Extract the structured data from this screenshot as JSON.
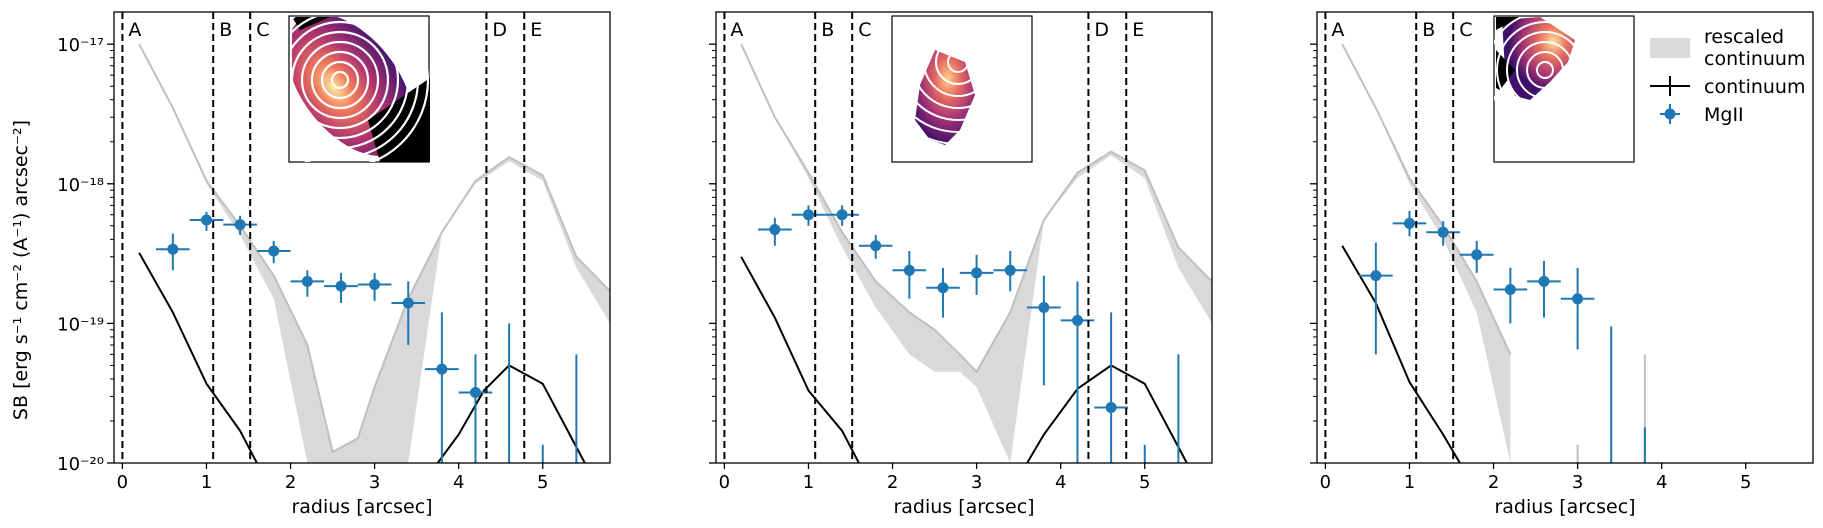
{
  "figure": {
    "ylabel": "SB [erg s⁻¹ cm⁻² (A⁻¹) arcsec⁻²]",
    "colors": {
      "mgii": "#1f77b4",
      "continuum": "#000000",
      "rescaled_fill": "#d9d9d9",
      "rescaled_line": "#bfbfbf"
    }
  },
  "chart_data": [
    {
      "type": "line",
      "panel": "left",
      "xlabel": "radius [arcsec]",
      "ylabel": "SB [erg s⁻¹ cm⁻² (A⁻¹) arcsec⁻²]",
      "xlim": [
        -0.1,
        5.8
      ],
      "ylim": [
        1e-20,
        1.7e-17
      ],
      "yscale": "log",
      "xticks": [
        0,
        1,
        2,
        3,
        4,
        5
      ],
      "xtick_labels": [
        "0",
        "1",
        "2",
        "3",
        "4",
        "5"
      ],
      "yticks": [
        1e-20,
        1e-19,
        1e-18,
        1e-17
      ],
      "ytick_labels": [
        "10⁻²⁰",
        "10⁻¹⁹",
        "10⁻¹⁸",
        "10⁻¹⁷"
      ],
      "show_ytick_labels": true,
      "vlines": [
        {
          "label": "A",
          "x": 0.0
        },
        {
          "label": "B",
          "x": 1.08
        },
        {
          "label": "C",
          "x": 1.52
        },
        {
          "label": "D",
          "x": 4.33
        },
        {
          "label": "E",
          "x": 4.78
        }
      ],
      "rescaled_continuum": {
        "x": [
          0.2,
          0.6,
          1.0,
          1.4,
          1.8,
          2.2,
          2.5,
          2.8,
          3.0,
          3.4,
          3.8,
          4.2,
          4.6,
          5.0,
          5.4,
          5.8
        ],
        "upper": [
          1e-17,
          3.5e-18,
          1.05e-18,
          5e-19,
          2.2e-19,
          7e-20,
          1.2e-20,
          1.5e-20,
          3.5e-20,
          1.5e-19,
          4.5e-19,
          1.05e-18,
          1.55e-18,
          1.15e-18,
          3e-19,
          1.7e-19
        ],
        "lower": [
          1e-17,
          3.5e-18,
          1e-18,
          4.3e-19,
          1.5e-19,
          1e-20,
          1e-20,
          1e-20,
          1e-20,
          1e-20,
          4.5e-19,
          1e-18,
          1.45e-18,
          1.05e-18,
          2.5e-19,
          1e-19
        ]
      },
      "continuum": {
        "x": [
          0.2,
          0.6,
          1.0,
          1.4,
          1.6
        ],
        "y": [
          3.2e-19,
          1.2e-19,
          3.7e-20,
          1.7e-20,
          1e-20
        ],
        "x2": [
          3.75,
          4.0,
          4.3,
          4.6,
          5.0,
          5.4,
          5.5
        ],
        "y2": [
          1e-20,
          1.6e-20,
          3.3e-20,
          5e-20,
          3.7e-20,
          1.3e-20,
          1e-20
        ]
      },
      "mgii": {
        "x": [
          0.6,
          1.0,
          1.4,
          1.8,
          2.2,
          2.6,
          3.0,
          3.4,
          3.8,
          4.2
        ],
        "y": [
          3.4e-19,
          5.5e-19,
          5.1e-19,
          3.3e-19,
          2e-19,
          1.85e-19,
          1.9e-19,
          1.4e-19,
          4.7e-20,
          3.2e-20
        ],
        "ylo": [
          2.4e-19,
          4.6e-19,
          4.3e-19,
          2.7e-19,
          1.55e-19,
          1.4e-19,
          1.45e-19,
          7e-20,
          1e-20,
          1e-20
        ],
        "yhi": [
          4.4e-19,
          6.3e-19,
          5.9e-19,
          3.9e-19,
          2.4e-19,
          2.3e-19,
          2.3e-19,
          2e-19,
          1.2e-19,
          6e-20
        ],
        "xerr": 0.2,
        "extra_errorbars": [
          {
            "x": 4.6,
            "ylo": 1e-20,
            "yhi": 1e-19
          },
          {
            "x": 5.0,
            "ylo": 1e-20,
            "yhi": 1.35e-20
          },
          {
            "x": 5.4,
            "ylo": 1e-20,
            "yhi": 6e-20
          }
        ]
      },
      "inset": "left"
    },
    {
      "type": "line",
      "panel": "middle",
      "xlabel": "radius [arcsec]",
      "ylabel": "",
      "xlim": [
        -0.1,
        5.8
      ],
      "ylim": [
        1e-20,
        1.7e-17
      ],
      "yscale": "log",
      "xticks": [
        0,
        1,
        2,
        3,
        4,
        5
      ],
      "xtick_labels": [
        "0",
        "1",
        "2",
        "3",
        "4",
        "5"
      ],
      "yticks": [
        1e-20,
        1e-19,
        1e-18,
        1e-17
      ],
      "ytick_labels": [],
      "show_ytick_labels": false,
      "vlines": [
        {
          "label": "A",
          "x": 0.0
        },
        {
          "label": "B",
          "x": 1.08
        },
        {
          "label": "C",
          "x": 1.52
        },
        {
          "label": "D",
          "x": 4.33
        },
        {
          "label": "E",
          "x": 4.78
        }
      ],
      "rescaled_continuum": {
        "x": [
          0.2,
          0.6,
          1.0,
          1.4,
          1.8,
          2.2,
          2.5,
          2.8,
          3.0,
          3.4,
          3.8,
          4.2,
          4.6,
          5.0,
          5.4,
          5.8
        ],
        "upper": [
          1e-17,
          3e-18,
          1.2e-18,
          4.5e-19,
          2e-19,
          1.2e-19,
          9e-20,
          6e-20,
          4.5e-20,
          1.2e-19,
          5.5e-19,
          1.2e-18,
          1.7e-18,
          1.25e-18,
          3.5e-19,
          2e-19
        ],
        "lower": [
          1e-17,
          3e-18,
          1.1e-18,
          3.5e-19,
          1.3e-19,
          6e-20,
          4.5e-20,
          4.5e-20,
          3.5e-20,
          1e-20,
          5.5e-19,
          1.1e-18,
          1.6e-18,
          1.1e-18,
          2.5e-19,
          1e-19
        ]
      },
      "continuum": {
        "x": [
          0.2,
          0.6,
          1.0,
          1.4,
          1.6
        ],
        "y": [
          3e-19,
          1.1e-19,
          3.3e-20,
          1.7e-20,
          1e-20
        ],
        "x2": [
          3.6,
          3.8,
          4.2,
          4.6,
          5.0,
          5.4,
          5.5
        ],
        "y2": [
          1e-20,
          1.6e-20,
          3.4e-20,
          5e-20,
          3.7e-20,
          1.3e-20,
          1e-20
        ]
      },
      "mgii": {
        "x": [
          0.6,
          1.0,
          1.4,
          1.8,
          2.2,
          2.6,
          3.0,
          3.4,
          3.8,
          4.2,
          4.6
        ],
        "y": [
          4.7e-19,
          6e-19,
          6e-19,
          3.6e-19,
          2.4e-19,
          1.8e-19,
          2.3e-19,
          2.4e-19,
          1.3e-19,
          1.05e-19,
          2.5e-20
        ],
        "ylo": [
          3.6e-19,
          5e-19,
          5e-19,
          2.9e-19,
          1.5e-19,
          1.1e-19,
          1.6e-19,
          1.7e-19,
          3.6e-20,
          1e-20,
          1e-20
        ],
        "yhi": [
          5.7e-19,
          7e-19,
          7e-19,
          4.3e-19,
          3.3e-19,
          2.5e-19,
          3.1e-19,
          3.3e-19,
          2.2e-19,
          2e-19,
          1.2e-19
        ],
        "xerr": 0.2,
        "extra_errorbars": [
          {
            "x": 5.0,
            "ylo": 1e-20,
            "yhi": 1.35e-20
          },
          {
            "x": 5.4,
            "ylo": 1e-20,
            "yhi": 6e-20
          }
        ]
      },
      "inset": "middle"
    },
    {
      "type": "line",
      "panel": "right",
      "xlabel": "radius [arcsec]",
      "ylabel": "",
      "xlim": [
        -0.1,
        5.8
      ],
      "ylim": [
        1e-20,
        1.7e-17
      ],
      "yscale": "log",
      "xticks": [
        0,
        1,
        2,
        3,
        4,
        5
      ],
      "xtick_labels": [
        "0",
        "1",
        "2",
        "3",
        "4",
        "5"
      ],
      "yticks": [
        1e-20,
        1e-19,
        1e-18,
        1e-17
      ],
      "ytick_labels": [],
      "show_ytick_labels": false,
      "vlines": [
        {
          "label": "A",
          "x": 0.0
        },
        {
          "label": "B",
          "x": 1.08
        },
        {
          "label": "C",
          "x": 1.52
        }
      ],
      "rescaled_continuum": {
        "x": [
          0.2,
          0.6,
          1.0,
          1.4,
          1.8,
          2.2
        ],
        "upper": [
          1e-17,
          3.5e-18,
          1.1e-18,
          5e-19,
          2e-19,
          6e-20
        ],
        "lower": [
          1e-17,
          3.5e-18,
          1e-18,
          4e-19,
          1.2e-19,
          1e-20
        ]
      },
      "continuum": {
        "x": [
          0.2,
          0.6,
          1.0,
          1.4,
          1.6
        ],
        "y": [
          3.6e-19,
          1.4e-19,
          3.8e-20,
          1.6e-20,
          1e-20
        ],
        "x2": [],
        "y2": []
      },
      "mgii": {
        "x": [
          0.6,
          1.0,
          1.4,
          1.8,
          2.2,
          2.6,
          3.0
        ],
        "y": [
          2.2e-19,
          5.2e-19,
          4.5e-19,
          3.1e-19,
          1.75e-19,
          2e-19,
          1.5e-19
        ],
        "ylo": [
          6e-20,
          4.2e-19,
          3.6e-19,
          2.3e-19,
          1e-19,
          1.1e-19,
          6.5e-20
        ],
        "yhi": [
          3.8e-19,
          6.4e-19,
          5.4e-19,
          3.9e-19,
          2.5e-19,
          2.8e-19,
          2.5e-19
        ],
        "xerr": 0.2,
        "extra_errorbars": [
          {
            "x": 3.4,
            "ylo": 1e-20,
            "yhi": 9.5e-20
          },
          {
            "x": 3.8,
            "ylo": 1e-20,
            "yhi": 1.8e-20
          }
        ]
      },
      "gray_stubs": [
        {
          "x": 3.0,
          "ylo": 1e-20,
          "yhi": 1.35e-20
        },
        {
          "x": 3.8,
          "ylo": 1e-20,
          "yhi": 6e-20
        }
      ],
      "inset": "right",
      "legend": {
        "position": "upper right",
        "entries": [
          {
            "key": "rescaled",
            "label_lines": [
              "rescaled",
              "continuum"
            ]
          },
          {
            "key": "continuum",
            "label_lines": [
              "continuum"
            ]
          },
          {
            "key": "mgii",
            "label_lines": [
              "MgII"
            ]
          }
        ]
      }
    }
  ]
}
